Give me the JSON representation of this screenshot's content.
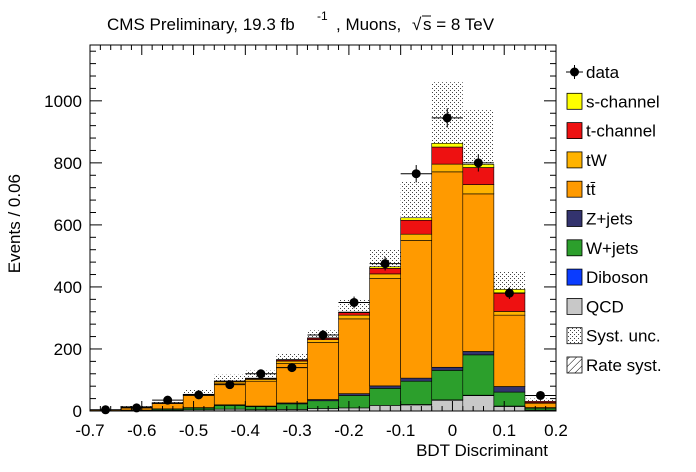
{
  "chart_data": {
    "type": "bar",
    "stacked": true,
    "title_main": "CMS Preliminary, 19.3 fb",
    "title_sup": "-1",
    "title_rest": ", Muons,",
    "title_energy": "s = 8 TeV",
    "title_root": "√",
    "xlabel": "BDT Discriminant",
    "ylabel": "Events / 0.06",
    "xlim": [
      -0.7,
      0.2
    ],
    "ylim": [
      0,
      1180
    ],
    "x_ticks": [
      -0.7,
      -0.6,
      -0.5,
      -0.4,
      -0.3,
      -0.2,
      -0.1,
      0,
      0.1,
      0.2
    ],
    "x_tick_labels": [
      "-0.7",
      "-0.6",
      "-0.5",
      "-0.4",
      "-0.3",
      "-0.2",
      "-0.1",
      "0",
      "0.1",
      "0.2"
    ],
    "y_ticks": [
      0,
      200,
      400,
      600,
      800,
      1000
    ],
    "y_tick_labels": [
      "0",
      "200",
      "400",
      "600",
      "800",
      "1000"
    ],
    "bin_edges": [
      -0.7,
      -0.64,
      -0.58,
      -0.52,
      -0.46,
      -0.4,
      -0.34,
      -0.28,
      -0.22,
      -0.16,
      -0.1,
      -0.04,
      0.02,
      0.08,
      0.14,
      0.2
    ],
    "series": [
      {
        "name": "QCD",
        "color": "#c8c8c8",
        "values": [
          0,
          1,
          2,
          4,
          6,
          4,
          5,
          8,
          10,
          18,
          20,
          35,
          50,
          15,
          3
        ]
      },
      {
        "name": "Diboson",
        "color": "#0a3cff",
        "values": [
          0,
          0,
          0,
          0,
          0,
          0,
          0,
          0,
          0,
          0,
          1,
          1,
          1,
          1,
          0
        ]
      },
      {
        "name": "W+jets",
        "color": "#2c9f2c",
        "values": [
          1,
          2,
          4,
          6,
          12,
          10,
          18,
          25,
          40,
          55,
          75,
          95,
          130,
          45,
          6
        ]
      },
      {
        "name": "Z+jets",
        "color": "#33336e",
        "values": [
          0,
          0,
          1,
          1,
          2,
          2,
          3,
          4,
          6,
          8,
          10,
          10,
          11,
          18,
          2
        ]
      },
      {
        "name": "tt̄",
        "color": "#ff9a00",
        "values": [
          3,
          10,
          17,
          39,
          70,
          80,
          127,
          184,
          241,
          346,
          444,
          630,
          508,
          230,
          14
        ]
      },
      {
        "name": "tW",
        "color": "#ffb300",
        "values": [
          0,
          1,
          2,
          3,
          5,
          6,
          8,
          9,
          12,
          15,
          20,
          25,
          30,
          12,
          2
        ]
      },
      {
        "name": "t-channel",
        "color": "#ee1111",
        "values": [
          0,
          0,
          1,
          1,
          2,
          3,
          4,
          5,
          8,
          18,
          45,
          55,
          55,
          60,
          4
        ]
      },
      {
        "name": "s-channel",
        "color": "#ffff00",
        "values": [
          0,
          0,
          0,
          0,
          0,
          1,
          1,
          1,
          2,
          5,
          8,
          12,
          10,
          11,
          0
        ]
      }
    ],
    "data": {
      "name": "data",
      "x": [
        -0.67,
        -0.61,
        -0.55,
        -0.49,
        -0.43,
        -0.37,
        -0.31,
        -0.25,
        -0.19,
        -0.13,
        -0.07,
        -0.01,
        0.05,
        0.11,
        0.17
      ],
      "y": [
        4,
        10,
        35,
        52,
        85,
        120,
        140,
        245,
        350,
        475,
        765,
        945,
        800,
        380,
        50
      ],
      "err": [
        2,
        3,
        6,
        7,
        9,
        11,
        12,
        16,
        19,
        22,
        28,
        31,
        28,
        19,
        7
      ]
    },
    "syst_unc": {
      "name": "Syst. unc.",
      "values": [
        6,
        16,
        32,
        70,
        117,
        130,
        185,
        260,
        360,
        520,
        740,
        1060,
        970,
        450,
        40
      ]
    },
    "rate_syst": {
      "name": "Rate syst."
    },
    "legend": [
      "data",
      "s-channel",
      "t-channel",
      "tW",
      "tt̄",
      "Z+jets",
      "W+jets",
      "Diboson",
      "QCD",
      "Syst. unc.",
      "Rate syst."
    ],
    "legend_position": "right"
  }
}
